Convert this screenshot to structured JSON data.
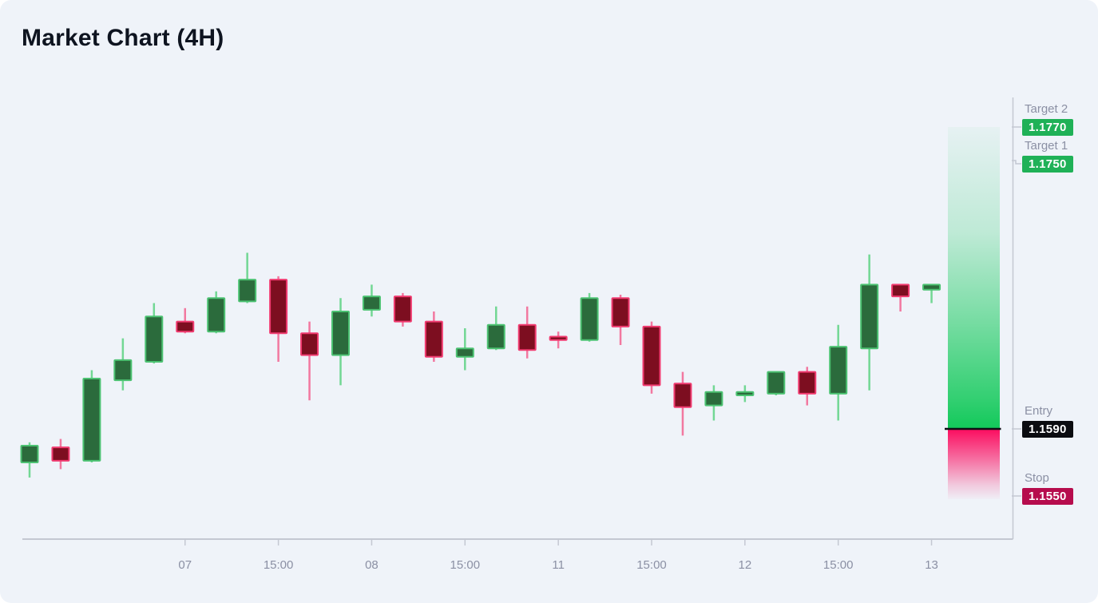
{
  "title": "Market Chart (4H)",
  "levels": {
    "target2": {
      "label": "Target 2",
      "value": "1.1770",
      "price": 1.177,
      "badge_color": "#1fb157",
      "text_color": "#ffffff"
    },
    "target1": {
      "label": "Target 1",
      "value": "1.1750",
      "price": 1.175,
      "badge_color": "#1fb157",
      "text_color": "#ffffff"
    },
    "entry": {
      "label": "Entry",
      "value": "1.1590",
      "price": 1.159,
      "badge_color": "#0b0c10",
      "text_color": "#ffffff"
    },
    "stop": {
      "label": "Stop",
      "value": "1.1550",
      "price": 1.155,
      "badge_color": "#b60c4d",
      "text_color": "#ffffff"
    }
  },
  "colors": {
    "background": "#eff3f9",
    "title_text": "#0e1420",
    "candle_up_body": "#2b6b3c",
    "candle_up_border": "#4cc272",
    "candle_up_wick": "#72d794",
    "candle_down_body": "#7d0e20",
    "candle_down_border": "#f13b70",
    "candle_down_wick": "#f278a0",
    "zone_profit": "#12c95a",
    "zone_loss": "#fb0c5f",
    "entry_line": "#0d0f14",
    "axis_line": "#c4c8d2",
    "tick_label": "#8b90a4"
  },
  "chart_data": {
    "type": "candlestick",
    "title": "Market Chart (4H)",
    "timeframe": "4H",
    "x_tick_labels": [
      "07",
      "15:00",
      "08",
      "15:00",
      "11",
      "15:00",
      "12",
      "15:00",
      "13"
    ],
    "x_tick_candle_indices": [
      5,
      8,
      11,
      14,
      17,
      20,
      23,
      26,
      29
    ],
    "y_visible_range": [
      1.1545,
      1.179
    ],
    "trade_levels": {
      "entry": 1.159,
      "stop": 1.155,
      "target1": 1.175,
      "target2": 1.177
    },
    "zones": {
      "profit": {
        "from": 1.159,
        "to": 1.177
      },
      "loss": {
        "from": 1.159,
        "to": 1.155
      }
    },
    "candles": [
      {
        "o": 1.157,
        "h": 1.1582,
        "l": 1.1561,
        "c": 1.158
      },
      {
        "o": 1.1579,
        "h": 1.1584,
        "l": 1.1566,
        "c": 1.1571
      },
      {
        "o": 1.1571,
        "h": 1.1625,
        "l": 1.157,
        "c": 1.162
      },
      {
        "o": 1.1619,
        "h": 1.1644,
        "l": 1.1613,
        "c": 1.1631
      },
      {
        "o": 1.163,
        "h": 1.1665,
        "l": 1.1629,
        "c": 1.1657
      },
      {
        "o": 1.1654,
        "h": 1.1662,
        "l": 1.1647,
        "c": 1.1648
      },
      {
        "o": 1.1648,
        "h": 1.1672,
        "l": 1.1647,
        "c": 1.1668
      },
      {
        "o": 1.1666,
        "h": 1.1695,
        "l": 1.1665,
        "c": 1.1679
      },
      {
        "o": 1.1679,
        "h": 1.1681,
        "l": 1.163,
        "c": 1.1647
      },
      {
        "o": 1.1647,
        "h": 1.1654,
        "l": 1.1607,
        "c": 1.1634
      },
      {
        "o": 1.1634,
        "h": 1.1668,
        "l": 1.1616,
        "c": 1.166
      },
      {
        "o": 1.1661,
        "h": 1.1676,
        "l": 1.1657,
        "c": 1.1669
      },
      {
        "o": 1.1669,
        "h": 1.1671,
        "l": 1.1651,
        "c": 1.1654
      },
      {
        "o": 1.1654,
        "h": 1.166,
        "l": 1.163,
        "c": 1.1633
      },
      {
        "o": 1.1633,
        "h": 1.165,
        "l": 1.1625,
        "c": 1.1638
      },
      {
        "o": 1.1638,
        "h": 1.1663,
        "l": 1.1637,
        "c": 1.1652
      },
      {
        "o": 1.1652,
        "h": 1.1663,
        "l": 1.1632,
        "c": 1.1637
      },
      {
        "o": 1.1645,
        "h": 1.1648,
        "l": 1.1638,
        "c": 1.1643
      },
      {
        "o": 1.1643,
        "h": 1.1671,
        "l": 1.1642,
        "c": 1.1668
      },
      {
        "o": 1.1668,
        "h": 1.167,
        "l": 1.164,
        "c": 1.1651
      },
      {
        "o": 1.1651,
        "h": 1.1654,
        "l": 1.1611,
        "c": 1.1616
      },
      {
        "o": 1.1617,
        "h": 1.1624,
        "l": 1.1586,
        "c": 1.1603
      },
      {
        "o": 1.1604,
        "h": 1.1616,
        "l": 1.1595,
        "c": 1.1612
      },
      {
        "o": 1.161,
        "h": 1.1616,
        "l": 1.1606,
        "c": 1.1612
      },
      {
        "o": 1.1611,
        "h": 1.1624,
        "l": 1.161,
        "c": 1.1624
      },
      {
        "o": 1.1624,
        "h": 1.1627,
        "l": 1.1604,
        "c": 1.1611
      },
      {
        "o": 1.1611,
        "h": 1.1652,
        "l": 1.1595,
        "c": 1.1639
      },
      {
        "o": 1.1638,
        "h": 1.1694,
        "l": 1.1613,
        "c": 1.1676
      },
      {
        "o": 1.1676,
        "h": 1.1676,
        "l": 1.166,
        "c": 1.1669
      },
      {
        "o": 1.1673,
        "h": 1.1676,
        "l": 1.1665,
        "c": 1.1676
      }
    ]
  }
}
